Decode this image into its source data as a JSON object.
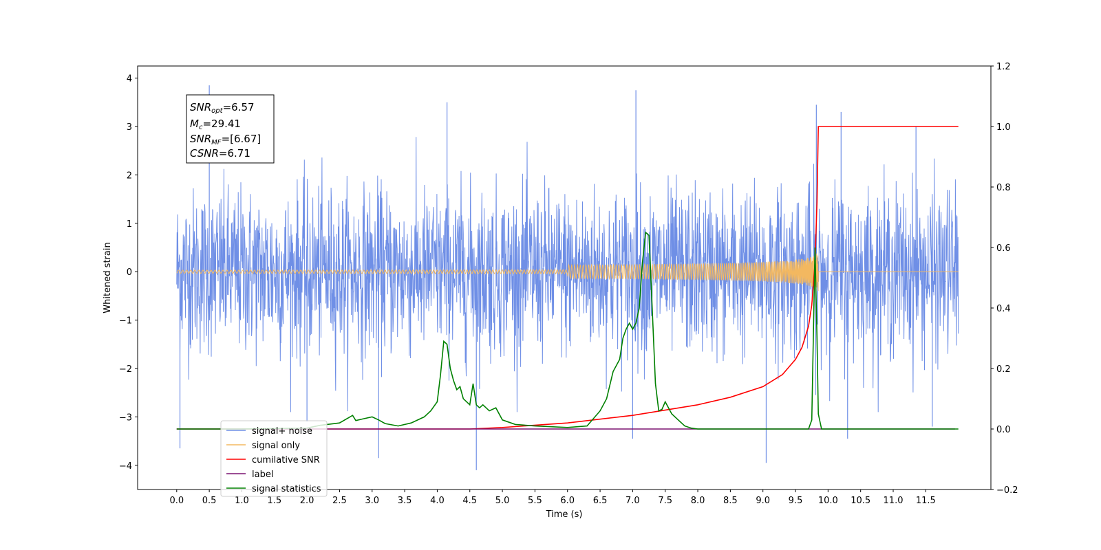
{
  "chart_data": {
    "type": "line",
    "title": "",
    "xlabel": "Time (s)",
    "ylabel": "Whitened strain",
    "y2label": "",
    "xlim": [
      -0.6,
      12.5
    ],
    "ylim": [
      -4.5,
      4.25
    ],
    "y2lim": [
      -0.2,
      1.2
    ],
    "x_ticks": [
      "0.0",
      "0.5",
      "1.0",
      "1.5",
      "2.0",
      "2.5",
      "3.0",
      "3.5",
      "4.0",
      "4.5",
      "5.0",
      "5.5",
      "6.0",
      "6.5",
      "7.0",
      "7.5",
      "8.0",
      "8.5",
      "9.0",
      "9.5",
      "10.0",
      "10.5",
      "11.0",
      "11.5"
    ],
    "y_ticks": [
      "4",
      "3",
      "2",
      "1",
      "0",
      "−1",
      "−2",
      "−3",
      "−4"
    ],
    "y2_ticks": [
      "1.2",
      "1.0",
      "0.8",
      "0.6",
      "0.4",
      "0.2",
      "0.0",
      "−0.2"
    ],
    "grid": false,
    "legend_position": "lower-left",
    "annotation": {
      "lines": [
        {
          "sym": "SNR",
          "sub": "opt",
          "text": "=6.57"
        },
        {
          "sym": "M",
          "sub": "c",
          "text": "=29.41"
        },
        {
          "sym": "SNR",
          "sub": "MF",
          "text": "=[6.67]"
        },
        {
          "sym": "CSNR",
          "sub": "",
          "text": "=6.71"
        }
      ]
    },
    "series": [
      {
        "name": "signal+ noise",
        "axis": "left",
        "color": "#6f8fe6",
        "x_range": [
          0.0,
          12.0
        ],
        "noise_std": 0.85,
        "spikes": [
          [
            0.05,
            -3.65
          ],
          [
            0.5,
            3.85
          ],
          [
            2.0,
            -3.1
          ],
          [
            3.1,
            -3.85
          ],
          [
            4.15,
            3.5
          ],
          [
            4.6,
            -4.1
          ],
          [
            7.05,
            3.75
          ],
          [
            7.0,
            -3.45
          ],
          [
            9.05,
            -3.95
          ],
          [
            9.82,
            3.45
          ],
          [
            10.2,
            3.3
          ],
          [
            10.3,
            -3.45
          ],
          [
            11.35,
            3.0
          ],
          [
            11.6,
            -3.2
          ]
        ]
      },
      {
        "name": "signal only",
        "axis": "left",
        "color": "#f3b860",
        "chirp_end": 9.85,
        "chirp_peak_amplitude": 0.42
      },
      {
        "name": "cumilative SNR",
        "axis": "right",
        "color": "#ff0000",
        "x": [
          0.0,
          4.5,
          5.0,
          6.0,
          7.0,
          8.0,
          8.5,
          9.0,
          9.3,
          9.5,
          9.6,
          9.7,
          9.75,
          9.8,
          9.83,
          9.85,
          12.0
        ],
        "values": [
          0.0,
          0.0,
          0.005,
          0.02,
          0.045,
          0.08,
          0.105,
          0.14,
          0.18,
          0.23,
          0.27,
          0.34,
          0.41,
          0.55,
          0.75,
          1.0,
          1.0
        ]
      },
      {
        "name": "label",
        "axis": "right",
        "color": "#7b1370",
        "x": [
          0.0,
          11.95
        ],
        "values": [
          0.0,
          0.0
        ]
      },
      {
        "name": "signal statistics",
        "axis": "right",
        "color": "#008000",
        "x": [
          0.0,
          1.0,
          2.0,
          2.2,
          2.5,
          2.7,
          2.75,
          2.85,
          3.0,
          3.1,
          3.2,
          3.4,
          3.6,
          3.8,
          3.9,
          4.0,
          4.05,
          4.1,
          4.15,
          4.2,
          4.25,
          4.3,
          4.35,
          4.4,
          4.5,
          4.55,
          4.6,
          4.65,
          4.7,
          4.8,
          4.9,
          5.0,
          5.2,
          5.5,
          6.0,
          6.3,
          6.5,
          6.6,
          6.7,
          6.8,
          6.85,
          6.9,
          6.95,
          7.0,
          7.05,
          7.1,
          7.15,
          7.2,
          7.25,
          7.3,
          7.35,
          7.4,
          7.45,
          7.5,
          7.6,
          7.7,
          7.8,
          7.9,
          8.0,
          9.5,
          9.7,
          9.75,
          9.8,
          9.83,
          9.85,
          9.9,
          10.0,
          12.0
        ],
        "values": [
          0.0,
          0.0,
          0.003,
          0.012,
          0.02,
          0.045,
          0.028,
          0.033,
          0.04,
          0.03,
          0.018,
          0.01,
          0.02,
          0.04,
          0.06,
          0.09,
          0.18,
          0.29,
          0.28,
          0.2,
          0.16,
          0.13,
          0.14,
          0.1,
          0.08,
          0.15,
          0.08,
          0.07,
          0.08,
          0.06,
          0.07,
          0.03,
          0.015,
          0.01,
          0.005,
          0.01,
          0.06,
          0.1,
          0.19,
          0.23,
          0.3,
          0.33,
          0.35,
          0.33,
          0.35,
          0.4,
          0.55,
          0.65,
          0.64,
          0.4,
          0.15,
          0.06,
          0.065,
          0.09,
          0.05,
          0.03,
          0.01,
          0.003,
          0.0,
          0.0,
          0.0,
          0.03,
          0.6,
          0.3,
          0.05,
          0.0,
          0.0,
          0.0
        ]
      }
    ]
  }
}
